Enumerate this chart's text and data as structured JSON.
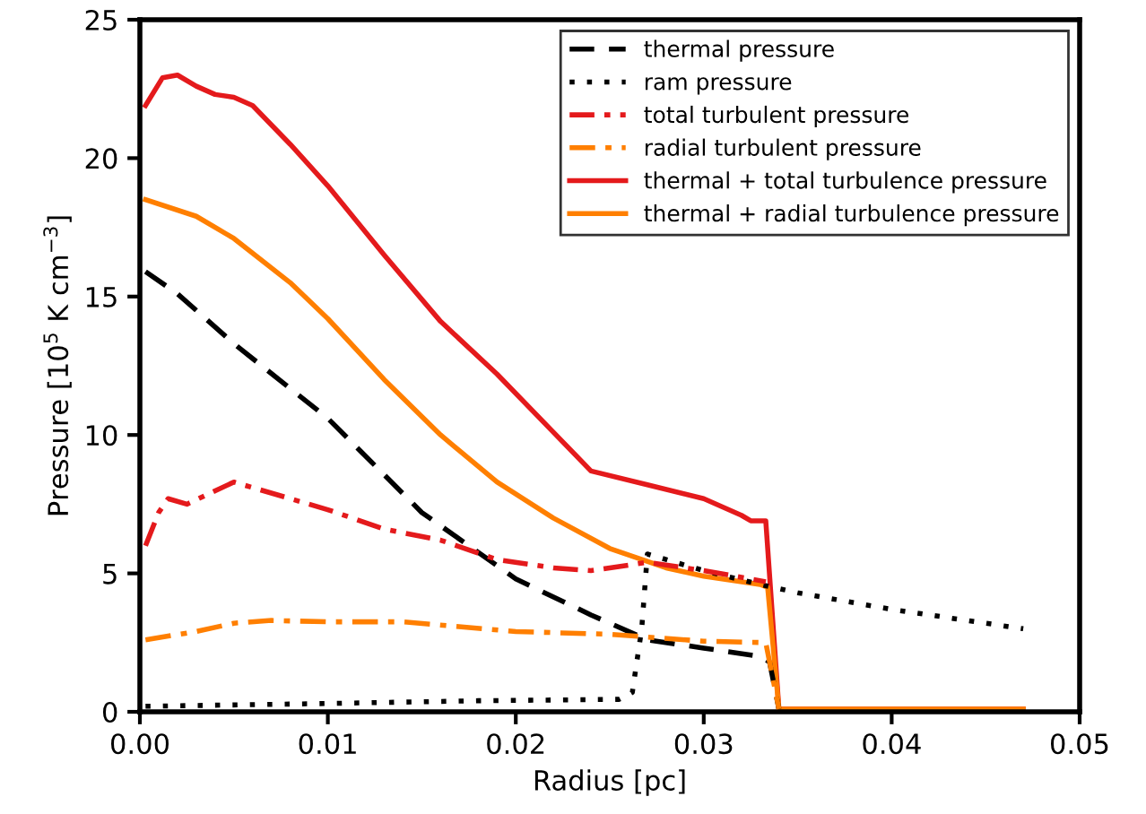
{
  "chart_data": {
    "type": "line",
    "xlabel": "Radius [pc]",
    "ylabel": "Pressure [10$^{5}$ K cm$^{−3}$]",
    "xlim": [
      0,
      0.05
    ],
    "ylim": [
      0,
      25
    ],
    "xticks": [
      {
        "value": 0,
        "label": "0.00"
      },
      0.01,
      0.02,
      0.03,
      0.04,
      0.05
    ],
    "yticks": [
      0,
      5,
      10,
      15,
      20,
      25
    ],
    "legend": "top right",
    "grid": false,
    "series": [
      {
        "name": "thermal pressure",
        "color": "#000000",
        "line_style": "dashed",
        "x": [
          0.0003,
          0.002,
          0.005,
          0.01,
          0.015,
          0.02,
          0.024,
          0.027,
          0.03,
          0.033,
          0.0335,
          0.034
        ],
        "values": [
          15.9,
          15.1,
          13.3,
          10.6,
          7.2,
          4.8,
          3.5,
          2.6,
          2.3,
          2.0,
          1.8,
          0.1
        ]
      },
      {
        "name": "ram pressure",
        "color": "#000000",
        "line_style": "dotted",
        "x": [
          0.0003,
          0.01,
          0.018,
          0.0255,
          0.0262,
          0.0267,
          0.027,
          0.028,
          0.03,
          0.033,
          0.035,
          0.04,
          0.045,
          0.047
        ],
        "values": [
          0.2,
          0.3,
          0.4,
          0.45,
          0.7,
          3.0,
          5.7,
          5.5,
          5.1,
          4.6,
          4.3,
          3.7,
          3.2,
          3.0
        ]
      },
      {
        "name": "total turbulent pressure",
        "color": "#e41a1c",
        "line_style": "dashdot",
        "x": [
          0.0003,
          0.001,
          0.0015,
          0.0025,
          0.005,
          0.006,
          0.01,
          0.013,
          0.016,
          0.019,
          0.022,
          0.024,
          0.027,
          0.03,
          0.0325,
          0.0333
        ],
        "values": [
          6.0,
          7.2,
          7.7,
          7.5,
          8.3,
          8.1,
          7.3,
          6.6,
          6.2,
          5.5,
          5.2,
          5.1,
          5.4,
          5.1,
          4.8,
          4.7
        ]
      },
      {
        "name": "radial turbulent pressure",
        "color": "#ff7f00",
        "line_style": "dashdot",
        "x": [
          0.0003,
          0.003,
          0.005,
          0.007,
          0.01,
          0.014,
          0.02,
          0.025,
          0.03,
          0.0333,
          0.034
        ],
        "values": [
          2.6,
          2.9,
          3.2,
          3.3,
          3.25,
          3.25,
          2.9,
          2.8,
          2.55,
          2.5,
          0.1
        ]
      },
      {
        "name": "thermal + total turbulence pressure",
        "color": "#e41a1c",
        "line_style": "solid",
        "x": [
          0.0003,
          0.0012,
          0.002,
          0.003,
          0.004,
          0.005,
          0.006,
          0.008,
          0.01,
          0.013,
          0.016,
          0.019,
          0.022,
          0.024,
          0.027,
          0.03,
          0.032,
          0.0325,
          0.0333,
          0.034,
          0.047
        ],
        "values": [
          21.9,
          22.9,
          23.0,
          22.6,
          22.3,
          22.2,
          21.9,
          20.5,
          19.0,
          16.5,
          14.1,
          12.2,
          10.1,
          8.7,
          8.2,
          7.7,
          7.1,
          6.9,
          6.9,
          0.1,
          0.1
        ]
      },
      {
        "name": "thermal + radial turbulence pressure",
        "color": "#ff7f00",
        "line_style": "solid",
        "x": [
          0.0003,
          0.003,
          0.005,
          0.008,
          0.01,
          0.013,
          0.016,
          0.019,
          0.022,
          0.025,
          0.028,
          0.03,
          0.033,
          0.0334,
          0.034,
          0.047
        ],
        "values": [
          18.5,
          17.9,
          17.1,
          15.5,
          14.2,
          12.0,
          10.0,
          8.3,
          7.0,
          5.9,
          5.2,
          4.9,
          4.6,
          4.5,
          0.1,
          0.1
        ]
      }
    ]
  }
}
